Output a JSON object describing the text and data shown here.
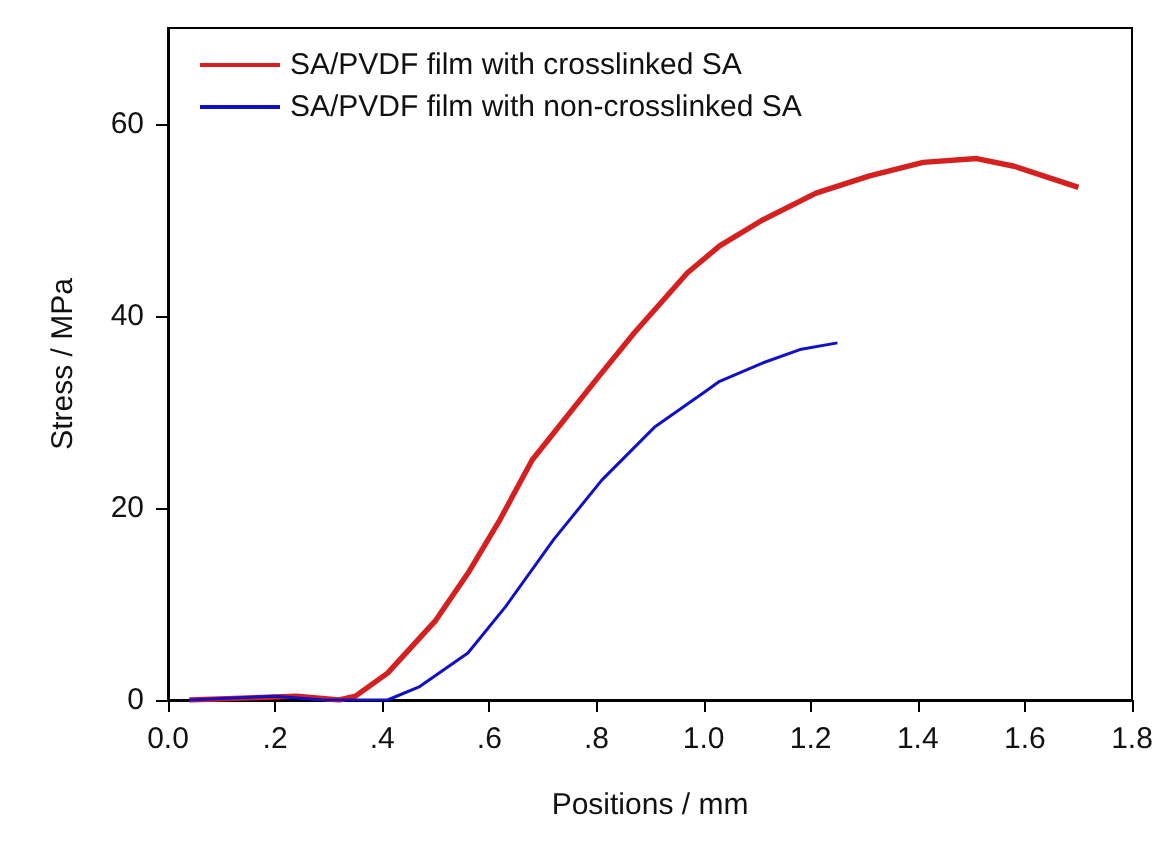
{
  "chart_data": {
    "type": "line",
    "xlabel": "Positions / mm",
    "ylabel": "Stress / MPa",
    "xlim": [
      0,
      1.8
    ],
    "ylim": [
      0,
      70
    ],
    "xticks": [
      {
        "value": 0,
        "label": "0.0"
      },
      {
        "value": 0.2,
        "label": ".2"
      },
      {
        "value": 0.4,
        "label": ".4"
      },
      {
        "value": 0.6,
        "label": ".6"
      },
      {
        "value": 0.8,
        "label": ".8"
      },
      {
        "value": 1.0,
        "label": "1.0"
      },
      {
        "value": 1.2,
        "label": "1.2"
      },
      {
        "value": 1.4,
        "label": "1.4"
      },
      {
        "value": 1.6,
        "label": "1.6"
      },
      {
        "value": 1.8,
        "label": "1.8"
      }
    ],
    "yticks": [
      0,
      20,
      40,
      60
    ],
    "grid": false,
    "legend": "top left",
    "marker": "none",
    "line_style": "solid",
    "series": [
      {
        "name": "SA/PVDF film with crosslinked SA",
        "color": "#d62020",
        "x": [
          0.04,
          0.24,
          0.32,
          0.35,
          0.41,
          0.5,
          0.56,
          0.62,
          0.68,
          0.8,
          0.87,
          0.97,
          1.03,
          1.11,
          1.21,
          1.31,
          1.41,
          1.51,
          1.58,
          1.7
        ],
        "values": [
          0,
          0.4,
          0,
          0.4,
          2.8,
          8.3,
          13.2,
          18.8,
          25,
          33.4,
          38.2,
          44.5,
          47.3,
          50,
          52.8,
          54.6,
          56,
          56.4,
          55.6,
          53.4
        ]
      },
      {
        "name": "SA/PVDF film with non-crosslinked SA",
        "color": "#1010c8",
        "x": [
          0.04,
          0.2,
          0.29,
          0.41,
          0.47,
          0.56,
          0.63,
          0.72,
          0.81,
          0.91,
          1.0,
          1.03,
          1.11,
          1.18,
          1.25
        ],
        "values": [
          0,
          0.4,
          0,
          0,
          1.4,
          4.9,
          9.7,
          16.7,
          22.9,
          28.5,
          32,
          33.2,
          35.1,
          36.5,
          37.2
        ]
      }
    ]
  }
}
